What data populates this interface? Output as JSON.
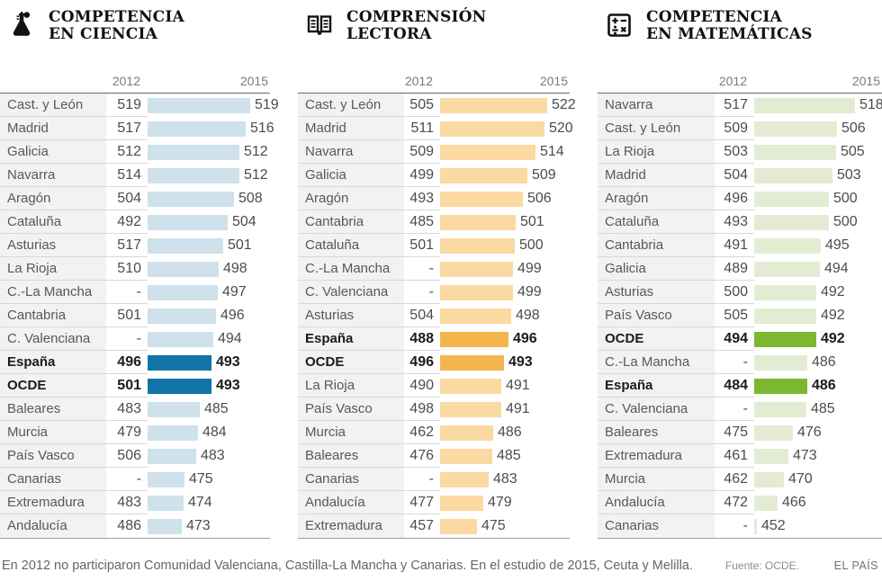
{
  "footer": {
    "note": "En 2012 no participaron Comunidad Valenciana, Castilla-La Mancha y Canarias. En el estudio de 2015, Ceuta y Melilla.",
    "source": "Fuente: OCDE.",
    "brand": "EL PAÍS"
  },
  "chart_data": [
    {
      "type": "bar",
      "title": "COMPETENCIA EN CIENCIA",
      "title_lines": [
        "COMPETENCIA",
        "EN CIENCIA"
      ],
      "icon": "flask-icon",
      "columns": [
        "2012",
        "2015"
      ],
      "colors": {
        "bar": "#cfe1eb",
        "highlight": "#1074a6"
      },
      "bar_value_range": [
        450,
        525
      ],
      "rows": [
        {
          "label": "Cast. y León",
          "v2012": "519",
          "v2015": 519,
          "bold": false
        },
        {
          "label": "Madrid",
          "v2012": "517",
          "v2015": 516,
          "bold": false
        },
        {
          "label": "Galicia",
          "v2012": "512",
          "v2015": 512,
          "bold": false
        },
        {
          "label": "Navarra",
          "v2012": "514",
          "v2015": 512,
          "bold": false
        },
        {
          "label": "Aragón",
          "v2012": "504",
          "v2015": 508,
          "bold": false
        },
        {
          "label": "Cataluña",
          "v2012": "492",
          "v2015": 504,
          "bold": false
        },
        {
          "label": "Asturias",
          "v2012": "517",
          "v2015": 501,
          "bold": false
        },
        {
          "label": "La Rioja",
          "v2012": "510",
          "v2015": 498,
          "bold": false
        },
        {
          "label": "C.-La Mancha",
          "v2012": "-",
          "v2015": 497,
          "bold": false
        },
        {
          "label": "Cantabria",
          "v2012": "501",
          "v2015": 496,
          "bold": false
        },
        {
          "label": "C. Valenciana",
          "v2012": "-",
          "v2015": 494,
          "bold": false
        },
        {
          "label": "España",
          "v2012": "496",
          "v2015": 493,
          "bold": true
        },
        {
          "label": "OCDE",
          "v2012": "501",
          "v2015": 493,
          "bold": true
        },
        {
          "label": "Baleares",
          "v2012": "483",
          "v2015": 485,
          "bold": false
        },
        {
          "label": "Murcia",
          "v2012": "479",
          "v2015": 484,
          "bold": false
        },
        {
          "label": "País Vasco",
          "v2012": "506",
          "v2015": 483,
          "bold": false
        },
        {
          "label": "Canarias",
          "v2012": "-",
          "v2015": 475,
          "bold": false
        },
        {
          "label": "Extremadura",
          "v2012": "483",
          "v2015": 474,
          "bold": false
        },
        {
          "label": "Andalucía",
          "v2012": "486",
          "v2015": 473,
          "bold": false
        }
      ]
    },
    {
      "type": "bar",
      "title": "COMPRENSIÓN LECTORA",
      "title_lines": [
        "COMPRENSIÓN",
        "LECTORA"
      ],
      "icon": "open-book-icon",
      "columns": [
        "2012",
        "2015"
      ],
      "colors": {
        "bar": "#fbd9a2",
        "highlight": "#f5b54e"
      },
      "bar_value_range": [
        450,
        525
      ],
      "rows": [
        {
          "label": "Cast. y León",
          "v2012": "505",
          "v2015": 522,
          "bold": false
        },
        {
          "label": "Madrid",
          "v2012": "511",
          "v2015": 520,
          "bold": false
        },
        {
          "label": "Navarra",
          "v2012": "509",
          "v2015": 514,
          "bold": false
        },
        {
          "label": "Galicia",
          "v2012": "499",
          "v2015": 509,
          "bold": false
        },
        {
          "label": "Aragón",
          "v2012": "493",
          "v2015": 506,
          "bold": false
        },
        {
          "label": "Cantabria",
          "v2012": "485",
          "v2015": 501,
          "bold": false
        },
        {
          "label": "Cataluña",
          "v2012": "501",
          "v2015": 500,
          "bold": false
        },
        {
          "label": "C.-La Mancha",
          "v2012": "-",
          "v2015": 499,
          "bold": false
        },
        {
          "label": "C. Valenciana",
          "v2012": "-",
          "v2015": 499,
          "bold": false
        },
        {
          "label": "Asturias",
          "v2012": "504",
          "v2015": 498,
          "bold": false
        },
        {
          "label": "España",
          "v2012": "488",
          "v2015": 496,
          "bold": true
        },
        {
          "label": "OCDE",
          "v2012": "496",
          "v2015": 493,
          "bold": true
        },
        {
          "label": "La Rioja",
          "v2012": "490",
          "v2015": 491,
          "bold": false
        },
        {
          "label": "País Vasco",
          "v2012": "498",
          "v2015": 491,
          "bold": false
        },
        {
          "label": "Murcia",
          "v2012": "462",
          "v2015": 486,
          "bold": false
        },
        {
          "label": "Baleares",
          "v2012": "476",
          "v2015": 485,
          "bold": false
        },
        {
          "label": "Canarias",
          "v2012": "-",
          "v2015": 483,
          "bold": false
        },
        {
          "label": "Andalucía",
          "v2012": "477",
          "v2015": 479,
          "bold": false
        },
        {
          "label": "Extremadura",
          "v2012": "457",
          "v2015": 475,
          "bold": false
        }
      ]
    },
    {
      "type": "bar",
      "title": "COMPETENCIA EN MATEMÁTICAS",
      "title_lines": [
        "COMPETENCIA",
        "EN MATEMÁTICAS"
      ],
      "icon": "math-operations-icon",
      "columns": [
        "2012",
        "2015"
      ],
      "colors": {
        "bar": "#e3ecd3",
        "highlight": "#7cb82f"
      },
      "bar_value_range": [
        450,
        525
      ],
      "rows": [
        {
          "label": "Navarra",
          "v2012": "517",
          "v2015": 518,
          "bold": false
        },
        {
          "label": "Cast. y León",
          "v2012": "509",
          "v2015": 506,
          "bold": false
        },
        {
          "label": "La Rioja",
          "v2012": "503",
          "v2015": 505,
          "bold": false
        },
        {
          "label": "Madrid",
          "v2012": "504",
          "v2015": 503,
          "bold": false
        },
        {
          "label": "Aragón",
          "v2012": "496",
          "v2015": 500,
          "bold": false
        },
        {
          "label": "Cataluña",
          "v2012": "493",
          "v2015": 500,
          "bold": false
        },
        {
          "label": "Cantabria",
          "v2012": "491",
          "v2015": 495,
          "bold": false
        },
        {
          "label": "Galicia",
          "v2012": "489",
          "v2015": 494,
          "bold": false
        },
        {
          "label": "Asturias",
          "v2012": "500",
          "v2015": 492,
          "bold": false
        },
        {
          "label": "País Vasco",
          "v2012": "505",
          "v2015": 492,
          "bold": false
        },
        {
          "label": "OCDE",
          "v2012": "494",
          "v2015": 492,
          "bold": true
        },
        {
          "label": "C.-La Mancha",
          "v2012": "-",
          "v2015": 486,
          "bold": false
        },
        {
          "label": "España",
          "v2012": "484",
          "v2015": 486,
          "bold": true
        },
        {
          "label": "C. Valenciana",
          "v2012": "-",
          "v2015": 485,
          "bold": false
        },
        {
          "label": "Baleares",
          "v2012": "475",
          "v2015": 476,
          "bold": false
        },
        {
          "label": "Extremadura",
          "v2012": "461",
          "v2015": 473,
          "bold": false
        },
        {
          "label": "Murcia",
          "v2012": "462",
          "v2015": 470,
          "bold": false
        },
        {
          "label": "Andalucía",
          "v2012": "472",
          "v2015": 466,
          "bold": false
        },
        {
          "label": "Canarias",
          "v2012": "-",
          "v2015": 452,
          "bold": false
        }
      ]
    }
  ]
}
